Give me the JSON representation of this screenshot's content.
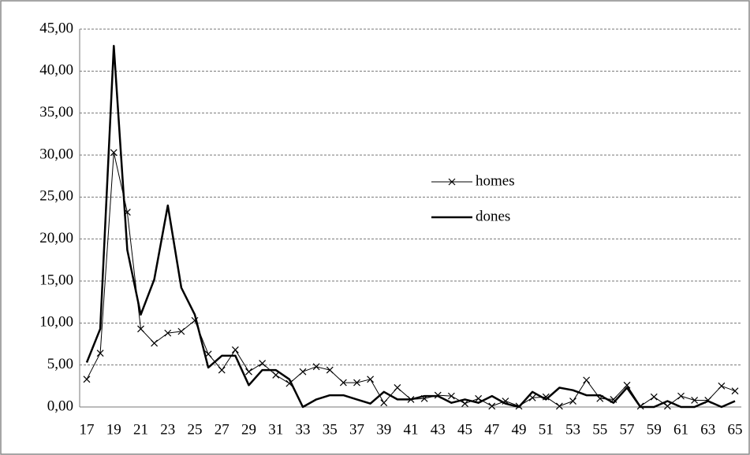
{
  "chart_data": {
    "type": "line",
    "categories": [
      "17",
      null,
      "19",
      null,
      "21",
      null,
      "23",
      null,
      "25",
      null,
      "27",
      null,
      "29",
      null,
      "31",
      null,
      "33",
      null,
      "35",
      null,
      "37",
      null,
      "39",
      null,
      "41",
      null,
      "43",
      null,
      "45",
      null,
      "47",
      null,
      "49",
      null,
      "51",
      null,
      "53",
      null,
      "55",
      null,
      "57",
      null,
      "59",
      null,
      "61",
      null,
      "63",
      null,
      "65"
    ],
    "series": [
      {
        "name": "homes",
        "color": "#000000",
        "line_width": 1,
        "marker": "x",
        "values": [
          3.3,
          6.4,
          30.3,
          23.2,
          9.3,
          7.6,
          8.8,
          9.0,
          10.3,
          6.3,
          4.4,
          6.8,
          4.2,
          5.2,
          3.8,
          2.8,
          4.2,
          4.8,
          4.4,
          2.9,
          2.9,
          3.3,
          0.5,
          2.3,
          0.9,
          1.0,
          1.4,
          1.3,
          0.4,
          1.0,
          0.1,
          0.7,
          0.1,
          1.1,
          1.2,
          0.1,
          0.7,
          3.2,
          1.0,
          0.9,
          2.6,
          0.1,
          1.2,
          0.1,
          1.3,
          0.8,
          0.8,
          2.5,
          1.9
        ]
      },
      {
        "name": "dones",
        "color": "#000000",
        "line_width": 2.5,
        "values": [
          5.3,
          9.3,
          43.0,
          18.7,
          11.0,
          15.2,
          24.0,
          14.2,
          11.0,
          4.7,
          6.1,
          6.1,
          2.6,
          4.4,
          4.4,
          3.3,
          0.0,
          0.9,
          1.4,
          1.4,
          0.9,
          0.4,
          1.8,
          0.9,
          0.9,
          1.3,
          1.3,
          0.5,
          0.9,
          0.5,
          1.3,
          0.4,
          0.0,
          1.8,
          0.9,
          2.3,
          2.0,
          1.4,
          1.4,
          0.5,
          2.3,
          0.0,
          0.0,
          0.7,
          0.0,
          0.0,
          0.7,
          0.0,
          0.7
        ]
      }
    ],
    "ylim": [
      0,
      45
    ],
    "yticks": [
      {
        "value": 0,
        "label": "0,00"
      },
      {
        "value": 5,
        "label": "5,00"
      },
      {
        "value": 10,
        "label": "10,00"
      },
      {
        "value": 15,
        "label": "15,00"
      },
      {
        "value": 20,
        "label": "20,00"
      },
      {
        "value": 25,
        "label": "25,00"
      },
      {
        "value": 30,
        "label": "30,00"
      },
      {
        "value": 35,
        "label": "35,00"
      },
      {
        "value": 40,
        "label": "40,00"
      },
      {
        "value": 45,
        "label": "45,00"
      }
    ],
    "grid": true,
    "legend": "center-right"
  }
}
